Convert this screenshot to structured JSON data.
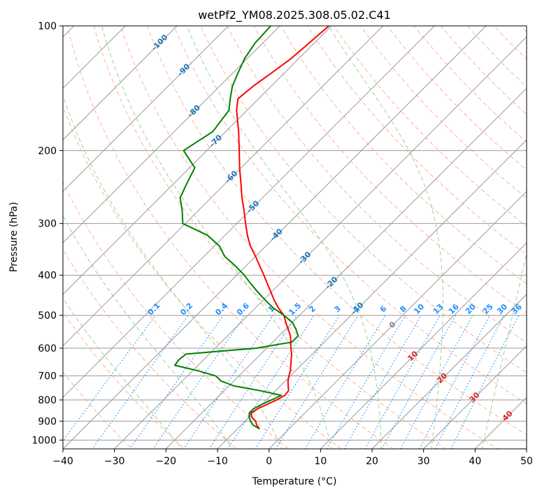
{
  "chart_data": {
    "type": "line",
    "title": "wetPf2_YM08.2025.308.05.02.C41",
    "xlabel": "Temperature (°C)",
    "ylabel": "Pressure (hPa)",
    "xlim": [
      -40,
      50
    ],
    "ylim": [
      1050,
      100
    ],
    "y_scale": "log",
    "skew_degrees": 45,
    "grid": true,
    "x_ticks": [
      -40,
      -30,
      -20,
      -10,
      0,
      10,
      20,
      30,
      40,
      50
    ],
    "x_tick_labels": [
      "−40",
      "−30",
      "−20",
      "−10",
      "0",
      "10",
      "20",
      "30",
      "40",
      "50"
    ],
    "y_ticks": [
      1000,
      900,
      800,
      700,
      600,
      500,
      400,
      300,
      200,
      100
    ],
    "y_tick_labels": [
      "1000",
      "900",
      "800",
      "700",
      "600",
      "500",
      "400",
      "300",
      "200",
      "100"
    ],
    "colors": {
      "temperature": "#ff0000",
      "dewpoint": "#008000",
      "isotherm": "#999999",
      "dry_adiabat": "#ff9f80",
      "moist_adiabat": "#90cc90",
      "mixing_ratio": "#1e90ff",
      "isotherm_label": "#1f77b4",
      "moist_label": "#d62728",
      "zero_label": "#808080"
    },
    "isotherm_labels": [
      {
        "t": -100,
        "p": 110,
        "text": "-100"
      },
      {
        "t": -90,
        "p": 128,
        "text": "-90"
      },
      {
        "t": -80,
        "p": 161,
        "text": "-80"
      },
      {
        "t": -70,
        "p": 190,
        "text": "-70"
      },
      {
        "t": -60,
        "p": 232,
        "text": "-60"
      },
      {
        "t": -50,
        "p": 274,
        "text": "-50"
      },
      {
        "t": -40,
        "p": 320,
        "text": "-40"
      },
      {
        "t": -30,
        "p": 364,
        "text": "-30"
      },
      {
        "t": -20,
        "p": 418,
        "text": "-20"
      },
      {
        "t": -10,
        "p": 482,
        "text": "-10"
      }
    ],
    "zero_label": {
      "t": 0,
      "p": 528,
      "text": "0"
    },
    "moist_labels": [
      {
        "t": 10,
        "p": 628,
        "text": "10"
      },
      {
        "t": 20,
        "p": 710,
        "text": "20"
      },
      {
        "t": 30,
        "p": 790,
        "text": "30"
      },
      {
        "t": 40,
        "p": 876,
        "text": "40"
      }
    ],
    "mixing_ratio_values": [
      0.1,
      0.2,
      0.4,
      0.6,
      1,
      1.5,
      2,
      3,
      4,
      6,
      8,
      10,
      13,
      16,
      20,
      25,
      30,
      36
    ],
    "mixing_ratio_labels": [
      "0.1",
      "0.2",
      "0.4",
      "0.6",
      "1",
      "1.5",
      "2",
      "3",
      "4",
      "6",
      "8",
      "10",
      "13",
      "16",
      "20",
      "25",
      "30",
      "36"
    ],
    "series": [
      {
        "key": "temperature",
        "points": [
          [
            -5.7,
            940
          ],
          [
            -7.0,
            920
          ],
          [
            -8.0,
            900
          ],
          [
            -9.5,
            880
          ],
          [
            -10.5,
            860
          ],
          [
            -10.0,
            840
          ],
          [
            -9.0,
            820
          ],
          [
            -8.0,
            800
          ],
          [
            -7.3,
            780
          ],
          [
            -7.5,
            760
          ],
          [
            -8.5,
            740
          ],
          [
            -9.5,
            720
          ],
          [
            -10.3,
            700
          ],
          [
            -11.0,
            680
          ],
          [
            -12.0,
            660
          ],
          [
            -13.0,
            640
          ],
          [
            -14.0,
            620
          ],
          [
            -15.3,
            600
          ],
          [
            -16.5,
            580
          ],
          [
            -17.8,
            560
          ],
          [
            -19.5,
            540
          ],
          [
            -21.3,
            520
          ],
          [
            -23.0,
            500
          ],
          [
            -25.5,
            480
          ],
          [
            -27.8,
            460
          ],
          [
            -30.0,
            440
          ],
          [
            -32.3,
            420
          ],
          [
            -34.7,
            400
          ],
          [
            -37.3,
            380
          ],
          [
            -40.0,
            360
          ],
          [
            -43.0,
            340
          ],
          [
            -45.7,
            320
          ],
          [
            -48.3,
            300
          ],
          [
            -51.0,
            280
          ],
          [
            -54.0,
            260
          ],
          [
            -57.0,
            240
          ],
          [
            -60.3,
            220
          ],
          [
            -63.7,
            200
          ],
          [
            -67.5,
            180
          ],
          [
            -72.0,
            160
          ],
          [
            -74.0,
            150
          ],
          [
            -73.5,
            140
          ],
          [
            -72.5,
            130
          ],
          [
            -71.5,
            120
          ],
          [
            -71.0,
            110
          ],
          [
            -70.5,
            100
          ]
        ]
      },
      {
        "key": "dewpoint",
        "points": [
          [
            -5.7,
            940
          ],
          [
            -7.7,
            920
          ],
          [
            -9.0,
            900
          ],
          [
            -10.0,
            880
          ],
          [
            -10.8,
            860
          ],
          [
            -10.8,
            840
          ],
          [
            -10.0,
            820
          ],
          [
            -9.0,
            800
          ],
          [
            -8.0,
            780
          ],
          [
            -13.0,
            760
          ],
          [
            -19.0,
            740
          ],
          [
            -22.5,
            720
          ],
          [
            -24.5,
            700
          ],
          [
            -29.0,
            680
          ],
          [
            -34.5,
            660
          ],
          [
            -34.8,
            640
          ],
          [
            -34.5,
            620
          ],
          [
            -22.0,
            600
          ],
          [
            -16.3,
            580
          ],
          [
            -16.3,
            560
          ],
          [
            -18.0,
            540
          ],
          [
            -20.0,
            520
          ],
          [
            -23.0,
            500
          ],
          [
            -26.5,
            480
          ],
          [
            -29.5,
            460
          ],
          [
            -32.5,
            440
          ],
          [
            -35.5,
            420
          ],
          [
            -38.5,
            400
          ],
          [
            -42.0,
            380
          ],
          [
            -46.0,
            360
          ],
          [
            -49.0,
            340
          ],
          [
            -53.5,
            320
          ],
          [
            -60.5,
            300
          ],
          [
            -63.0,
            280
          ],
          [
            -66.0,
            260
          ],
          [
            -67.5,
            240
          ],
          [
            -69.0,
            220
          ],
          [
            -74.5,
            200
          ],
          [
            -72.5,
            180
          ],
          [
            -73.5,
            160
          ],
          [
            -75.5,
            150
          ],
          [
            -77.5,
            140
          ],
          [
            -79.0,
            130
          ],
          [
            -80.5,
            120
          ],
          [
            -81.5,
            110
          ],
          [
            -81.8,
            100
          ]
        ]
      }
    ]
  }
}
